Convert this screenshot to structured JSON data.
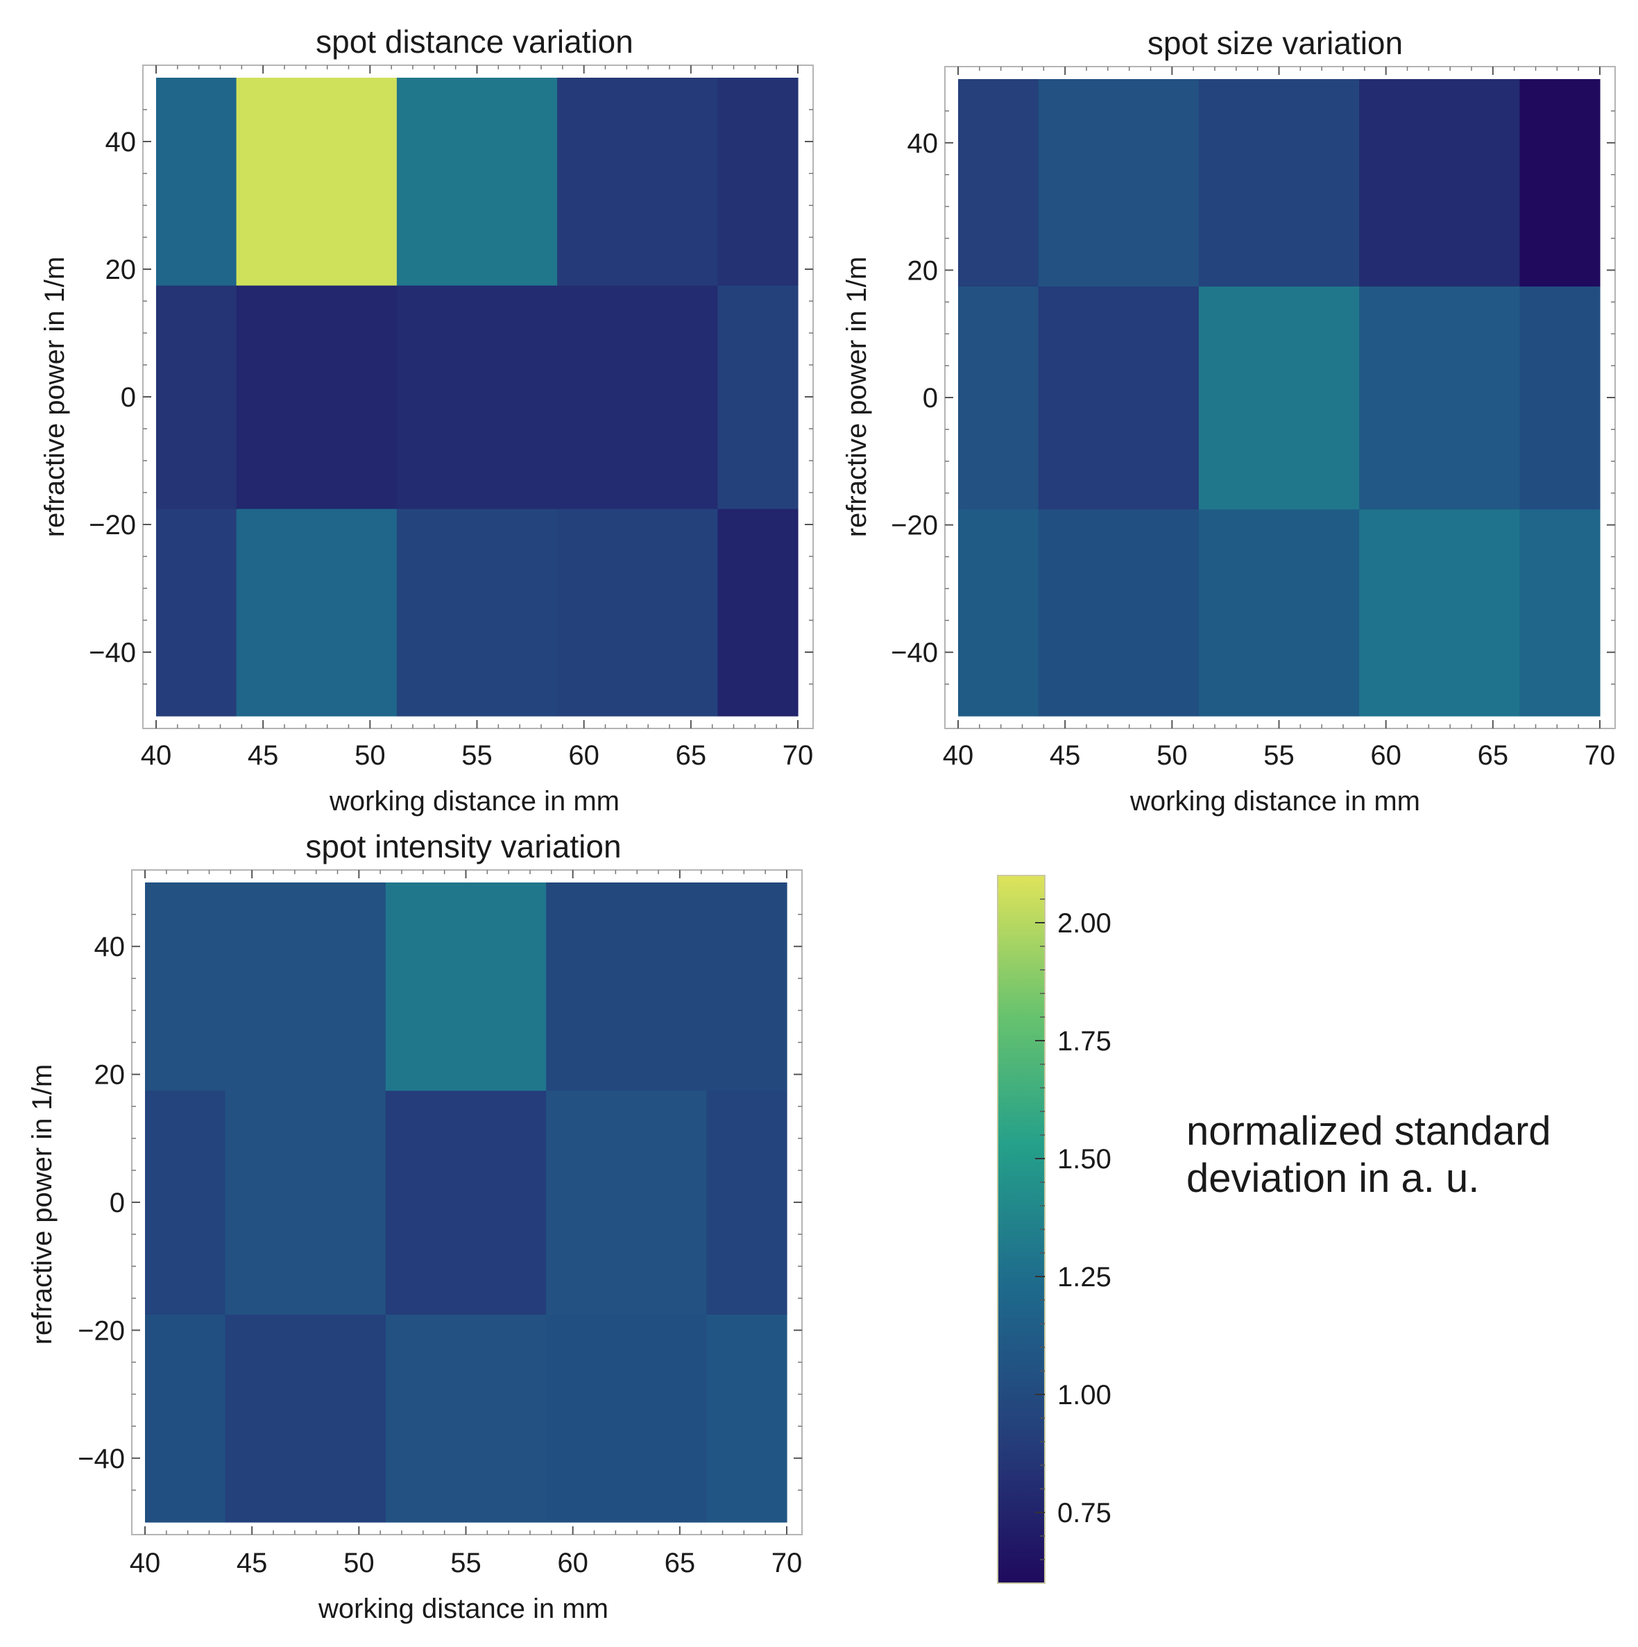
{
  "chart_data": [
    {
      "type": "heatmap",
      "title": "spot distance variation",
      "xlabel": "working distance in mm",
      "ylabel": "refractive power in 1/m",
      "x_bin_edges": [
        40,
        43.75,
        51.25,
        58.75,
        66.25,
        70
      ],
      "y_bin_edges": [
        -50,
        -17.5,
        17.5,
        50
      ],
      "xlim": [
        40,
        70
      ],
      "ylim": [
        -50,
        50
      ],
      "x_ticks": [
        "40",
        "45",
        "50",
        "55",
        "60",
        "65",
        "70"
      ],
      "y_ticks": [
        "−40",
        "−20",
        "0",
        "20",
        "40"
      ],
      "values": [
        [
          0.9,
          1.2,
          0.95,
          0.93,
          0.75
        ],
        [
          0.85,
          0.77,
          0.8,
          0.8,
          0.93
        ],
        [
          1.2,
          2.08,
          1.3,
          0.88,
          0.83
        ]
      ]
    },
    {
      "type": "heatmap",
      "title": "spot size variation",
      "xlabel": "working distance in mm",
      "ylabel": "refractive power in 1/m",
      "x_bin_edges": [
        40,
        43.75,
        51.25,
        58.75,
        66.25,
        70
      ],
      "y_bin_edges": [
        -50,
        -17.5,
        17.5,
        50
      ],
      "xlim": [
        40,
        70
      ],
      "ylim": [
        -50,
        50
      ],
      "x_ticks": [
        "40",
        "45",
        "50",
        "55",
        "60",
        "65",
        "70"
      ],
      "y_ticks": [
        "−40",
        "−20",
        "0",
        "20",
        "40"
      ],
      "values": [
        [
          1.12,
          1.03,
          1.12,
          1.28,
          1.2
        ],
        [
          1.05,
          0.9,
          1.3,
          1.1,
          1.02
        ],
        [
          0.92,
          1.05,
          0.95,
          0.8,
          0.6
        ]
      ]
    },
    {
      "type": "heatmap",
      "title": "spot intensity variation",
      "xlabel": "working distance in mm",
      "ylabel": "refractive power in 1/m",
      "x_bin_edges": [
        40,
        43.75,
        51.25,
        58.75,
        66.25,
        70
      ],
      "y_bin_edges": [
        -50,
        -17.5,
        17.5,
        50
      ],
      "xlim": [
        40,
        70
      ],
      "ylim": [
        -50,
        50
      ],
      "x_ticks": [
        "40",
        "45",
        "50",
        "55",
        "60",
        "65",
        "70"
      ],
      "y_ticks": [
        "−40",
        "−20",
        "0",
        "20",
        "40"
      ],
      "values": [
        [
          1.03,
          0.93,
          1.05,
          1.03,
          1.08
        ],
        [
          0.95,
          1.05,
          0.9,
          1.05,
          0.95
        ],
        [
          1.05,
          1.05,
          1.3,
          0.98,
          0.98
        ]
      ]
    }
  ],
  "colorbar": {
    "range": [
      0.6,
      2.1
    ],
    "ticks": [
      "0.75",
      "1.00",
      "1.25",
      "1.50",
      "1.75",
      "2.00"
    ],
    "tick_values": [
      0.75,
      1.0,
      1.25,
      1.5,
      1.75,
      2.0
    ],
    "label_line1": "normalized standard",
    "label_line2": "deviation in a. u.",
    "colormap": [
      "#440154",
      "#3b528b",
      "#21918c",
      "#5ec962",
      "#fde725"
    ],
    "stops": [
      "#1f0a5e",
      "#253d7a",
      "#1e6a8c",
      "#25a08a",
      "#66c26e",
      "#d6e35a"
    ]
  }
}
